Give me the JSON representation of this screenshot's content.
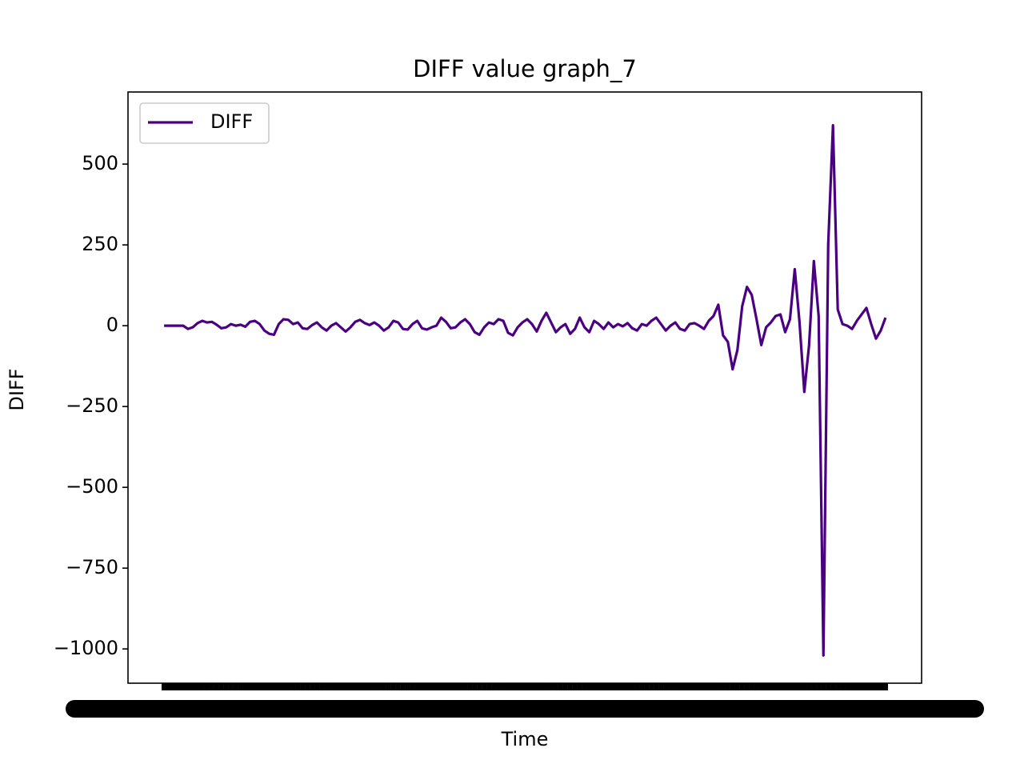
{
  "chart_data": {
    "type": "line",
    "title": "DIFF value graph_7",
    "x_label": "Time",
    "y_label": "DIFF",
    "categories": [
      null,
      null,
      null,
      null,
      null,
      null,
      null,
      null,
      null,
      null,
      null,
      null,
      null,
      null,
      null,
      null,
      null,
      null,
      null,
      null,
      null,
      null,
      null,
      null,
      null,
      null,
      null,
      null,
      null,
      null,
      null,
      null,
      null,
      null,
      null,
      null,
      null,
      null,
      null,
      null,
      null,
      null,
      null,
      null,
      null,
      null,
      null,
      null,
      null,
      null,
      null,
      null,
      null,
      null,
      null,
      null,
      null,
      null,
      null,
      null,
      null,
      null,
      null,
      null,
      null,
      null,
      null,
      null,
      null,
      null,
      null,
      null,
      null,
      null,
      null,
      null,
      null,
      null,
      null,
      null,
      null,
      null,
      null,
      null,
      null,
      null,
      null,
      null,
      null,
      null,
      null,
      null,
      null,
      null,
      null,
      null,
      null,
      null,
      null,
      null,
      null,
      null,
      null,
      null,
      null,
      null,
      null,
      null,
      null,
      null,
      null,
      null,
      null,
      null,
      null,
      null,
      null,
      null,
      null,
      null,
      null,
      null,
      null,
      null,
      null,
      null,
      null,
      null,
      null,
      null,
      null,
      null,
      null,
      null,
      null,
      null,
      null,
      null,
      null,
      null,
      null,
      null,
      null,
      null,
      null,
      null,
      null,
      null,
      null,
      null,
      null,
      null
    ],
    "series": [
      {
        "name": "DIFF",
        "color": "#4b0082",
        "values": [
          0,
          0,
          0,
          0,
          0,
          -10,
          -5,
          8,
          15,
          10,
          12,
          3,
          -8,
          -5,
          5,
          0,
          3,
          -3,
          12,
          15,
          5,
          -15,
          -25,
          -28,
          5,
          20,
          18,
          5,
          10,
          -8,
          -10,
          2,
          10,
          -5,
          -15,
          0,
          8,
          -5,
          -18,
          -5,
          12,
          18,
          8,
          2,
          10,
          0,
          -15,
          -5,
          15,
          10,
          -10,
          -12,
          5,
          15,
          -8,
          -12,
          -5,
          0,
          25,
          12,
          -8,
          -5,
          10,
          20,
          5,
          -20,
          -28,
          -5,
          10,
          5,
          20,
          15,
          -22,
          -30,
          -5,
          10,
          20,
          5,
          -18,
          15,
          40,
          10,
          -20,
          -5,
          5,
          -25,
          -10,
          25,
          -5,
          -20,
          15,
          5,
          -10,
          10,
          -5,
          5,
          -2,
          8,
          -8,
          -15,
          5,
          0,
          15,
          25,
          5,
          -15,
          0,
          10,
          -10,
          -15,
          5,
          8,
          0,
          -10,
          15,
          30,
          65,
          -30,
          -50,
          -135,
          -75,
          60,
          120,
          95,
          20,
          -60,
          -5,
          10,
          30,
          35,
          -20,
          20,
          175,
          10,
          -205,
          -60,
          200,
          30,
          -1020,
          250,
          620,
          50,
          5,
          0,
          -10,
          15,
          35,
          55,
          5,
          -40,
          -15,
          25
        ]
      }
    ],
    "ylim": [
      -1106,
      723
    ],
    "yticks": [
      {
        "value": -1000,
        "label": "−1000"
      },
      {
        "value": -750,
        "label": "−750"
      },
      {
        "value": -500,
        "label": "−500"
      },
      {
        "value": -250,
        "label": "−250"
      },
      0,
      250,
      500
    ],
    "legend": "upper left",
    "grid": false
  }
}
